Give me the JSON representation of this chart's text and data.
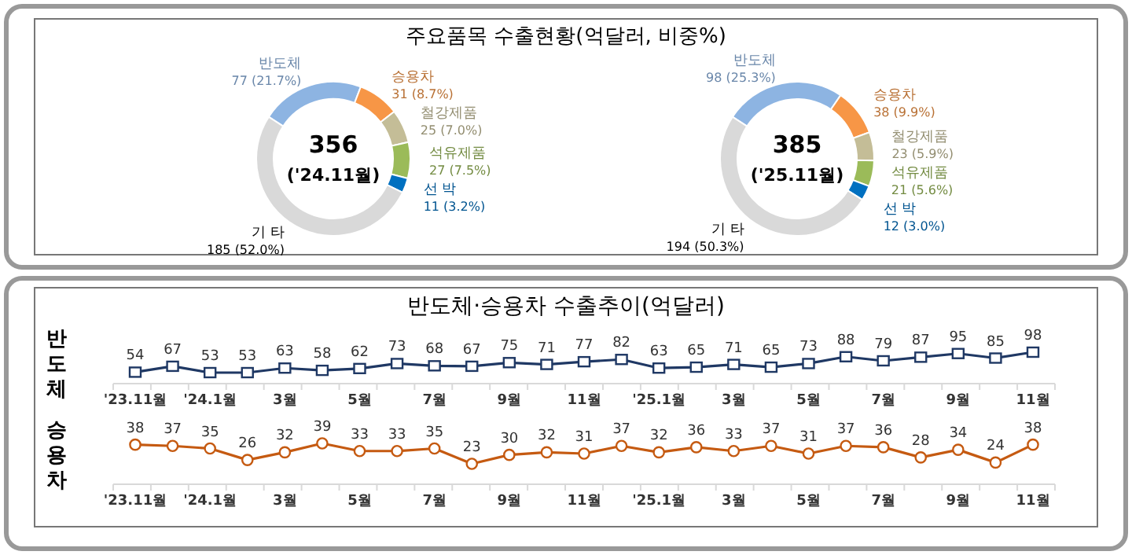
{
  "chart_data": [
    {
      "type": "donut",
      "title": "주요품목 수출현황(억달러, 비중%)",
      "categories": [
        "반도체",
        "승용차",
        "철강제품",
        "석유제품",
        "선 박",
        "기 타"
      ],
      "values": [
        77,
        31,
        25,
        27,
        11,
        185
      ],
      "colors": [
        "#8db4e2",
        "#f79646",
        "#c4bd97",
        "#9bbb59",
        "#0070c0",
        "#d9d9d9"
      ],
      "value_labels": [
        "77 (21.7%)",
        "31 (8.7%)",
        "25 (7.0%)",
        "27 (7.5%)",
        "11 (3.2%)",
        "185 (52.0%)"
      ],
      "annotations": [
        "356",
        "('24.11월)"
      ]
    },
    {
      "type": "donut",
      "categories": [
        "반도체",
        "승용차",
        "철강제품",
        "석유제품",
        "선 박",
        "기 타"
      ],
      "values": [
        98,
        38,
        23,
        21,
        12,
        194
      ],
      "colors": [
        "#8db4e2",
        "#f79646",
        "#c4bd97",
        "#9bbb59",
        "#0070c0",
        "#d9d9d9"
      ],
      "value_labels": [
        "98 (25.3%)",
        "38 (9.9%)",
        "23 (5.9%)",
        "21 (5.6%)",
        "12 (3.0%)",
        "194 (50.3%)"
      ],
      "annotations": [
        "385",
        "('25.11월)"
      ]
    },
    {
      "type": "line",
      "title": "반도체·승용차 수출추이(억달러)",
      "ylabel": "반도체",
      "categories": [
        "'23.11월",
        null,
        "'24.1월",
        null,
        "3월",
        null,
        "5월",
        null,
        "7월",
        null,
        "9월",
        null,
        "11월",
        null,
        "'25.1월",
        null,
        "3월",
        null,
        "5월",
        null,
        "7월",
        null,
        "9월",
        null,
        "11월"
      ],
      "marker": "square",
      "data_labels": true,
      "series": [
        {
          "color": "#1f3864",
          "values": [
            54,
            67,
            53,
            53,
            63,
            58,
            62,
            73,
            68,
            67,
            75,
            71,
            77,
            82,
            63,
            65,
            71,
            65,
            73,
            88,
            79,
            87,
            95,
            85,
            98
          ]
        }
      ]
    },
    {
      "type": "line",
      "ylabel": "승용차",
      "categories": [
        "'23.11월",
        null,
        "'24.1월",
        null,
        "3월",
        null,
        "5월",
        null,
        "7월",
        null,
        "9월",
        null,
        "11월",
        null,
        "'25.1월",
        null,
        "3월",
        null,
        "5월",
        null,
        "7월",
        null,
        "9월",
        null,
        "11월"
      ],
      "marker": "circle",
      "data_labels": true,
      "series": [
        {
          "color": "#c55a11",
          "values": [
            38,
            37,
            35,
            26,
            32,
            39,
            33,
            33,
            35,
            23,
            30,
            32,
            31,
            37,
            32,
            36,
            33,
            37,
            31,
            37,
            36,
            28,
            34,
            24,
            38
          ]
        }
      ]
    }
  ]
}
